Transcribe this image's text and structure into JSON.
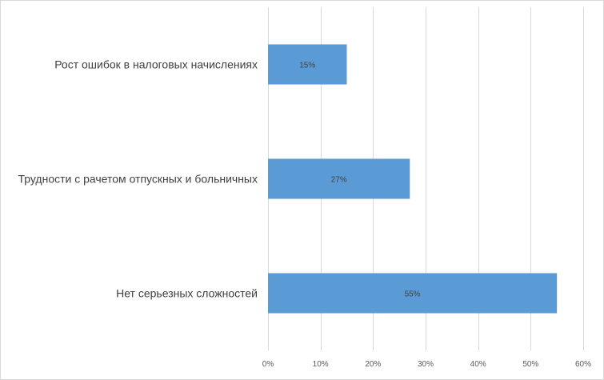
{
  "chart_data": {
    "type": "bar",
    "orientation": "horizontal",
    "categories": [
      "Рост ошибок в налоговых начислениях",
      "Трудности с рачетом отпускных и больничных",
      "Нет серьезных сложностей"
    ],
    "values": [
      15,
      27,
      55
    ],
    "data_labels": [
      "15%",
      "27%",
      "55%"
    ],
    "xlim": [
      0,
      60
    ],
    "x_ticks": [
      0,
      10,
      20,
      30,
      40,
      50,
      60
    ],
    "x_tick_labels": [
      "0%",
      "10%",
      "20%",
      "30%",
      "40%",
      "50%",
      "60%"
    ],
    "grid": true,
    "legend": "none",
    "bar_color": "#5b9bd5",
    "grid_color": "#d9d9d9",
    "title": "",
    "xlabel": "",
    "ylabel": ""
  }
}
